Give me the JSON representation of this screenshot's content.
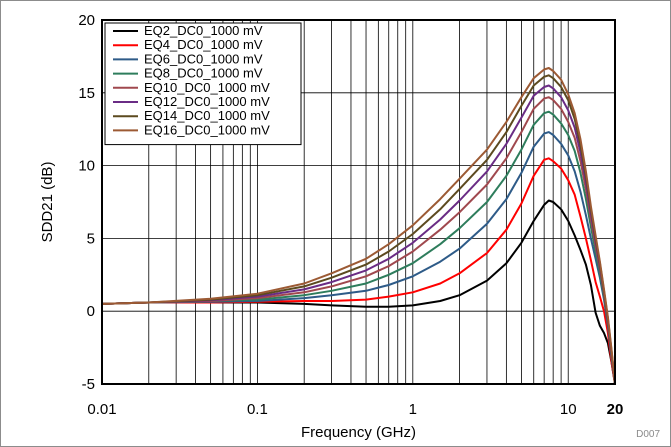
{
  "chart_data": {
    "type": "line",
    "title": "",
    "xlabel": "Frequency (GHz)",
    "ylabel": "SDD21 (dB)",
    "xscale": "log",
    "xlim": [
      0.01,
      20
    ],
    "ylim": [
      -5,
      20
    ],
    "grid": true,
    "legend_position": "top-left",
    "figure_id": "D007",
    "x_ticks": [
      {
        "value": 0.01,
        "label": "0.01",
        "bold": false
      },
      {
        "value": 0.1,
        "label": "0.1",
        "bold": false
      },
      {
        "value": 1,
        "label": "1",
        "bold": false
      },
      {
        "value": 10,
        "label": "10",
        "bold": false
      },
      {
        "value": 20,
        "label": "20",
        "bold": true
      }
    ],
    "y_ticks": [
      {
        "value": -5,
        "label": "-5"
      },
      {
        "value": 0,
        "label": "0"
      },
      {
        "value": 5,
        "label": "5"
      },
      {
        "value": 10,
        "label": "10"
      },
      {
        "value": 15,
        "label": "15"
      },
      {
        "value": 20,
        "label": "20"
      }
    ],
    "x": [
      0.01,
      0.02,
      0.05,
      0.1,
      0.2,
      0.3,
      0.5,
      0.7,
      1,
      1.5,
      2,
      3,
      4,
      5,
      6,
      7,
      7.5,
      8,
      9,
      10,
      11,
      12,
      13,
      14,
      15,
      16,
      17,
      18,
      19,
      20
    ],
    "series": [
      {
        "name": "EQ2_DC0_1000 mV",
        "color": "#000000",
        "values": [
          0.5,
          0.6,
          0.6,
          0.6,
          0.5,
          0.4,
          0.3,
          0.3,
          0.4,
          0.7,
          1.1,
          2.1,
          3.3,
          4.7,
          6.2,
          7.3,
          7.6,
          7.5,
          7.0,
          6.2,
          5.2,
          4.2,
          3.2,
          1.8,
          -0.1,
          -1.0,
          -1.5,
          -2.2,
          -3.5,
          -5.0
        ]
      },
      {
        "name": "EQ4_DC0_1000 mV",
        "color": "#ff0000",
        "values": [
          0.5,
          0.6,
          0.6,
          0.65,
          0.7,
          0.7,
          0.8,
          1.0,
          1.3,
          1.9,
          2.6,
          4.0,
          5.6,
          7.4,
          9.3,
          10.4,
          10.5,
          10.3,
          9.8,
          9.0,
          8.0,
          6.5,
          5.0,
          3.5,
          2.0,
          1.0,
          0.0,
          -1.5,
          -3.5,
          -5.0
        ]
      },
      {
        "name": "EQ6_DC0_1000 mV",
        "color": "#2e5b88",
        "values": [
          0.5,
          0.6,
          0.65,
          0.7,
          0.9,
          1.1,
          1.4,
          1.8,
          2.4,
          3.4,
          4.3,
          6.0,
          7.7,
          9.5,
          11.3,
          12.2,
          12.3,
          12.1,
          11.5,
          10.7,
          9.6,
          8.2,
          6.6,
          5.0,
          3.6,
          2.3,
          0.8,
          -1.0,
          -3.2,
          -5.0
        ]
      },
      {
        "name": "EQ8_DC0_1000 mV",
        "color": "#2e7d5c",
        "values": [
          0.5,
          0.6,
          0.7,
          0.8,
          1.1,
          1.4,
          1.9,
          2.5,
          3.3,
          4.6,
          5.7,
          7.5,
          9.3,
          11.1,
          12.8,
          13.6,
          13.7,
          13.5,
          12.9,
          12.1,
          11.0,
          9.5,
          7.7,
          5.8,
          4.1,
          2.6,
          1.0,
          -0.8,
          -3.0,
          -5.0
        ]
      },
      {
        "name": "EQ10_DC0_1000 mV",
        "color": "#a0484e",
        "values": [
          0.5,
          0.6,
          0.7,
          0.9,
          1.3,
          1.7,
          2.4,
          3.1,
          4.1,
          5.6,
          6.8,
          8.7,
          10.5,
          12.3,
          13.9,
          14.6,
          14.7,
          14.5,
          13.9,
          13.0,
          11.9,
          10.3,
          8.4,
          6.3,
          4.5,
          2.9,
          1.2,
          -0.7,
          -2.9,
          -5.0
        ]
      },
      {
        "name": "EQ12_DC0_1000 mV",
        "color": "#6a2c85",
        "values": [
          0.5,
          0.6,
          0.75,
          1.0,
          1.5,
          2.0,
          2.8,
          3.6,
          4.7,
          6.3,
          7.6,
          9.6,
          11.5,
          13.3,
          14.8,
          15.4,
          15.5,
          15.3,
          14.7,
          13.8,
          12.6,
          10.9,
          8.9,
          6.7,
          4.8,
          3.1,
          1.3,
          -0.6,
          -2.8,
          -5.0
        ]
      },
      {
        "name": "EQ14_DC0_1000 mV",
        "color": "#5c4a1f",
        "values": [
          0.5,
          0.6,
          0.8,
          1.1,
          1.7,
          2.3,
          3.2,
          4.1,
          5.3,
          7.0,
          8.4,
          10.4,
          12.3,
          14.1,
          15.5,
          16.1,
          16.2,
          16.0,
          15.4,
          14.5,
          13.2,
          11.4,
          9.3,
          7.0,
          5.0,
          3.3,
          1.4,
          -0.5,
          -2.7,
          -5.0
        ]
      },
      {
        "name": "EQ16_DC0_1000 mV",
        "color": "#9c5a34",
        "values": [
          0.5,
          0.6,
          0.85,
          1.2,
          1.9,
          2.6,
          3.6,
          4.6,
          5.9,
          7.7,
          9.1,
          11.1,
          13.0,
          14.7,
          16.0,
          16.6,
          16.7,
          16.5,
          15.9,
          14.9,
          13.6,
          11.8,
          9.6,
          7.2,
          5.2,
          3.4,
          1.5,
          -0.4,
          -2.6,
          -5.0
        ]
      }
    ]
  }
}
